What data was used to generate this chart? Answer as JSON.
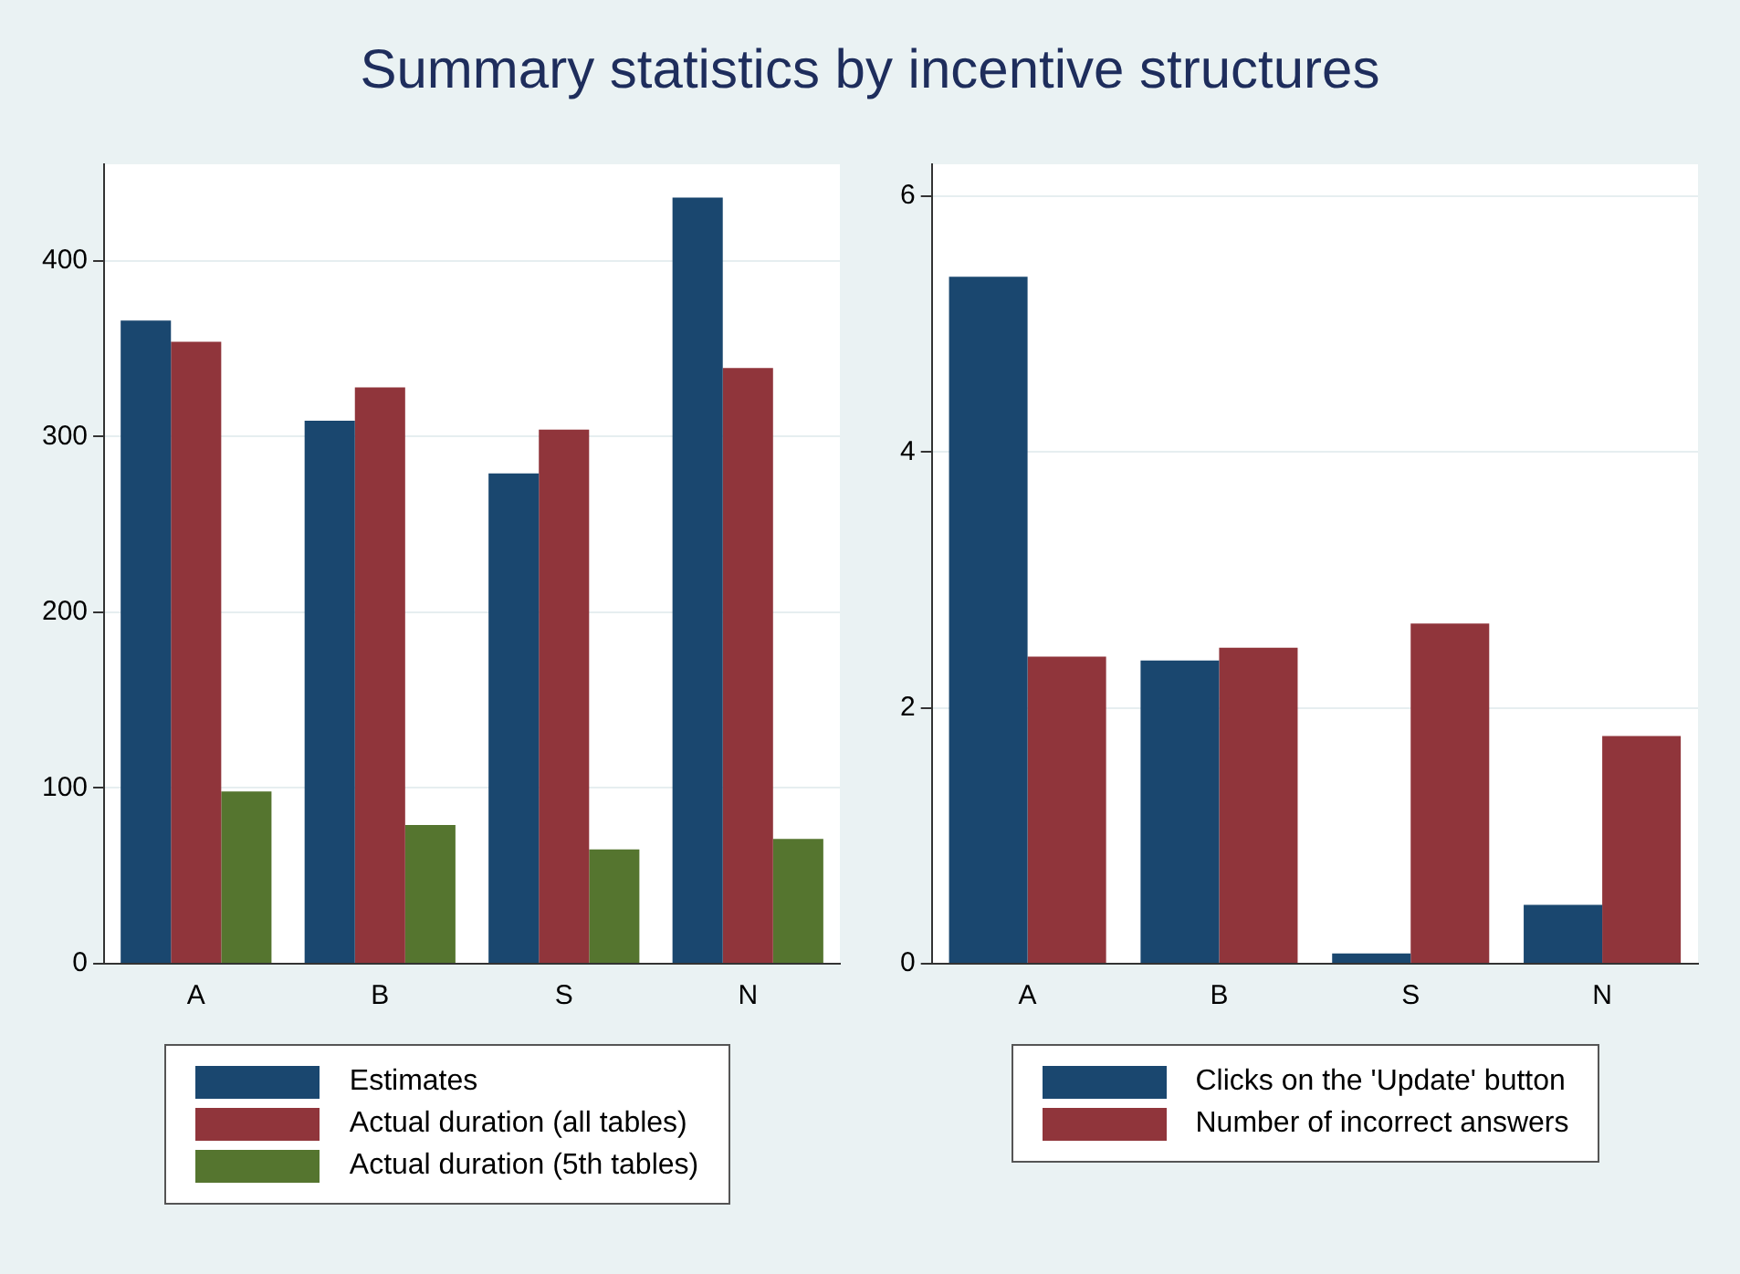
{
  "chart_data": [
    {
      "type": "bar",
      "title": "Summary statistics by incentive structures",
      "categories": [
        "A",
        "B",
        "S",
        "N"
      ],
      "series": [
        {
          "name": "Estimates",
          "color": "#1a476f",
          "values": [
            366,
            309,
            279,
            436
          ]
        },
        {
          "name": "Actual duration (all tables)",
          "color": "#90353b",
          "values": [
            354,
            328,
            304,
            339
          ]
        },
        {
          "name": "Actual duration (5th tables)",
          "color": "#55752f",
          "values": [
            98,
            79,
            65,
            71
          ]
        }
      ],
      "ylim": [
        0,
        455
      ],
      "yticks": [
        0,
        100,
        200,
        300,
        400
      ],
      "grid": "y",
      "legend": "bottom"
    },
    {
      "type": "bar",
      "categories": [
        "A",
        "B",
        "S",
        "N"
      ],
      "series": [
        {
          "name": "Clicks on the 'Update' button",
          "color": "#1a476f",
          "values": [
            5.37,
            2.37,
            0.08,
            0.46
          ]
        },
        {
          "name": "Number of incorrect answers",
          "color": "#90353b",
          "values": [
            2.4,
            2.47,
            2.66,
            1.78
          ]
        }
      ],
      "ylim": [
        0,
        6.25
      ],
      "yticks": [
        0,
        2,
        4,
        6
      ],
      "grid": "y",
      "legend": "bottom"
    }
  ]
}
